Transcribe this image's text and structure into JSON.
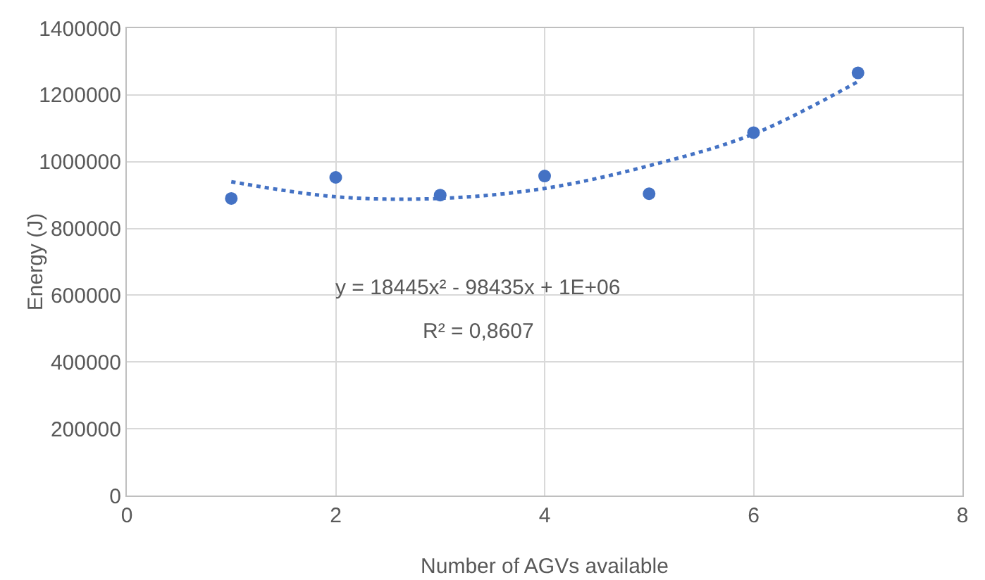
{
  "chart_data": {
    "type": "scatter",
    "xlabel": "Number of AGVs available",
    "ylabel": "Energy (J)",
    "xlim": [
      0,
      8
    ],
    "xticks": [
      0,
      2,
      4,
      6,
      8
    ],
    "ylim": [
      0,
      1400000
    ],
    "yticks": [
      0,
      200000,
      400000,
      600000,
      800000,
      1000000,
      1200000,
      1400000
    ],
    "grid": true,
    "marker": "circle",
    "series": [
      {
        "color": "#4472c4",
        "x": [
          1,
          2,
          3,
          4,
          5,
          6,
          7
        ],
        "values": [
          890000,
          953000,
          900000,
          957000,
          904000,
          1087000,
          1266000
        ]
      },
      {
        "type": "line",
        "line_style": "dotted",
        "marker": "none",
        "color": "#4472c4",
        "x": [
          1,
          2,
          3,
          4,
          5,
          6,
          7
        ],
        "values": [
          940000,
          895000,
          890000,
          920000,
          988000,
          1083000,
          1240000
        ]
      }
    ],
    "annotations": [
      "y = 18445x² - 98435x + 1E+06",
      "R² = 0,8607"
    ]
  }
}
